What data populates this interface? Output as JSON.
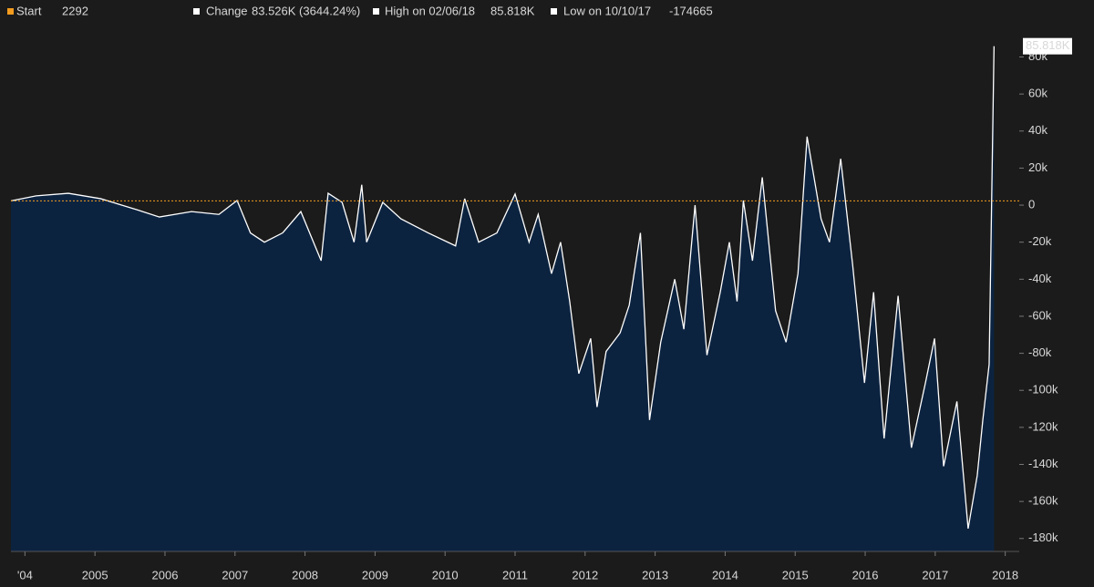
{
  "chart_data": {
    "type": "area",
    "header_stats": [
      {
        "label": "Start",
        "value": "2292",
        "color": "#f39c1f"
      },
      {
        "label": "Change",
        "value": "83.526K (3644.24%)",
        "color": "#ffffff"
      },
      {
        "label": "High on 02/06/18",
        "value": "85.818K",
        "color": "#ffffff"
      },
      {
        "label": "Low on 10/10/17",
        "value": "-174665",
        "color": "#ffffff"
      }
    ],
    "last_value_label": "85.818K",
    "reference_value": 2292,
    "reference_color": "#f39c1f",
    "fill_color": "#0c2340",
    "series": [
      {
        "color": "#ffffff",
        "x": [
          2003.8,
          2004.16,
          2004.62,
          2005.08,
          2005.6,
          2005.92,
          2006.38,
          2006.77,
          2007.03,
          2007.22,
          2007.42,
          2007.68,
          2007.94,
          2008.23,
          2008.33,
          2008.53,
          2008.7,
          2008.81,
          2008.88,
          2009.11,
          2009.37,
          2009.76,
          2010.15,
          2010.28,
          2010.48,
          2010.74,
          2011.0,
          2011.2,
          2011.33,
          2011.52,
          2011.65,
          2011.78,
          2011.91,
          2012.08,
          2012.17,
          2012.3,
          2012.5,
          2012.63,
          2012.79,
          2012.92,
          2013.08,
          2013.28,
          2013.41,
          2013.57,
          2013.74,
          2013.93,
          2014.06,
          2014.17,
          2014.26,
          2014.39,
          2014.53,
          2014.72,
          2014.87,
          2015.04,
          2015.17,
          2015.37,
          2015.49,
          2015.65,
          2015.82,
          2015.99,
          2016.12,
          2016.27,
          2016.47,
          2016.66,
          2016.86,
          2016.99,
          2017.12,
          2017.31,
          2017.47,
          2017.6,
          2017.68,
          2017.77,
          2017.84
        ],
        "values": [
          2292,
          5000,
          6400,
          3500,
          -2500,
          -6400,
          -3500,
          -5000,
          2500,
          -15000,
          -20000,
          -15000,
          -3500,
          -30000,
          6400,
          1500,
          -20000,
          11000,
          -20000,
          1500,
          -7400,
          -15000,
          -22000,
          3500,
          -20000,
          -15000,
          6000,
          -20000,
          -5000,
          -37000,
          -20000,
          -52000,
          -91000,
          -72000,
          -109000,
          -79000,
          -69000,
          -54000,
          -15000,
          -116000,
          -74000,
          -40000,
          -67000,
          0,
          -81000,
          -47000,
          -20000,
          -52000,
          2500,
          -30000,
          15000,
          -57000,
          -74000,
          -37000,
          37000,
          -7400,
          -20000,
          25000,
          -32000,
          -96000,
          -47000,
          -126000,
          -49000,
          -131000,
          -96000,
          -72000,
          -141000,
          -106000,
          -174665,
          -146000,
          -116000,
          -86000,
          85818
        ]
      }
    ],
    "xlim": [
      2003.8,
      2018.2
    ],
    "xticks": [
      {
        "value": 2004,
        "label": "'04"
      },
      2005,
      2006,
      2007,
      2008,
      2009,
      2010,
      2011,
      2012,
      2013,
      2014,
      2015,
      2016,
      2017,
      2018
    ],
    "ylim": [
      -187000,
      96000
    ],
    "yticks": [
      {
        "value": -180000,
        "label": "-180k"
      },
      {
        "value": -160000,
        "label": "-160k"
      },
      {
        "value": -140000,
        "label": "-140k"
      },
      {
        "value": -120000,
        "label": "-120k"
      },
      {
        "value": -100000,
        "label": "-100k"
      },
      {
        "value": -80000,
        "label": "-80k"
      },
      {
        "value": -60000,
        "label": "-60k"
      },
      {
        "value": -40000,
        "label": "-40k"
      },
      {
        "value": -20000,
        "label": "-20k"
      },
      0,
      {
        "value": 20000,
        "label": "20k"
      },
      {
        "value": 40000,
        "label": "40k"
      },
      {
        "value": 60000,
        "label": "60k"
      },
      {
        "value": 80000,
        "label": "80k"
      }
    ]
  }
}
